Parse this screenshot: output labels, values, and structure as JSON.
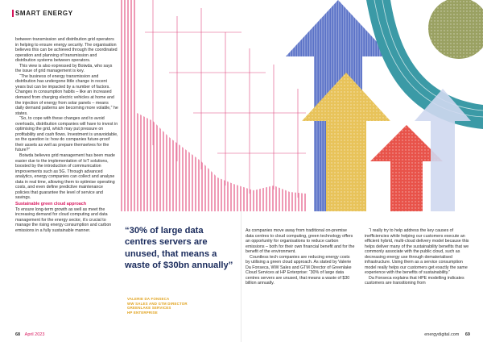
{
  "section": {
    "label": "SMART ENERGY"
  },
  "col1": {
    "paragraphs": [
      "between transmission and distribution grid operators in helping to ensure energy security. The organisation believes this can be achieved through the coordinated operation and planning of transmission and distribution systems between operators.",
      "This view is also expressed by Boiwda, who says the issue of grid management is key.",
      "“The business of energy transmission and distribution has undergone little change in recent years but can be impacted by a number of factors. Changes in consumption habits – like an increased demand from charging electric vehicles at home and the injection of energy from solar panels – means daily demand patterns are becoming more volatile,” he states.",
      "“So, to cope with these changes and to avoid overloads, distribution companies will have to invest in optimising the grid, which may put pressure on profitability and cash flows. Investment is unavoidable, so the question is: how do companies future-proof their assets as well as prepare themselves for the future?”",
      "Boiwda believes grid management has been made easier due to the implementation of IoT solutions, boosted by the introduction of communication improvements such as 5G. Through advanced analytics, energy companies can collect and analyse data in real time, allowing them to optimise operating costs, and even define predictive maintenance policies that guarantee the level of service and savings."
    ],
    "subhead": "Sustainable green cloud approach",
    "after_subhead": "To ensure long-term growth as well as meet the increasing demand for cloud computing and data management for the energy sector, it’s crucial to manage the rising energy consumption and carbon emissions in a fully sustainable manner."
  },
  "quote": {
    "text": "“30% of large data centres servers are unused, that means a waste of $30bn annually”",
    "attr_name": "VALERIE DA FONSECA",
    "attr_role1": "WW SALES AND GTM DIRECTOR",
    "attr_role2": "GREENLAKE SERVICES",
    "attr_company": "HP ENTERPRISE"
  },
  "col3": {
    "paragraphs": [
      "As companies move away from traditional on-premise data centres to cloud computing, green technology offers an opportunity for organisations to reduce carbon emissions – both for their own financial benefit and for the benefit of the environment.",
      "Countless tech companies are reducing energy costs by utilising a green cloud approach. As stated by Valerie Da Fonseca, WW Sales and GTM Director of Greenlake Cloud Services at HP Enterprise: “30% of large data centres servers are unused, that means a waste of $30 billion annually."
    ]
  },
  "col4": {
    "paragraphs": [
      "“I really try to help address the key causes of inefficiencies while helping our customers execute an efficient hybrid, multi-cloud delivery model because this helps deliver many of the sustainability benefits that we commonly associate with the public cloud, such as decreasing energy use through dematerialised infrastructure. Using them as a service consumption model really helps our customers get exactly the same experience with the benefits of sustainability.”",
      "Da Fonseca explains that HPE modelling indicates customers are transitioning from"
    ]
  },
  "footer": {
    "left_page": "68",
    "left_date": "April 2023",
    "right_site": "energydigital.com",
    "right_page": "69"
  },
  "colors": {
    "accent": "#d81b60",
    "navy": "#1a2b5c",
    "gold": "#e0a11b",
    "blue_arrow": "#5a72c7",
    "yellow_arrow": "#e8c35a",
    "red_arrow": "#e8534a",
    "pink_art": "#ef9ab5",
    "olive": "#9aa162",
    "teal": "#3b9aa6"
  }
}
